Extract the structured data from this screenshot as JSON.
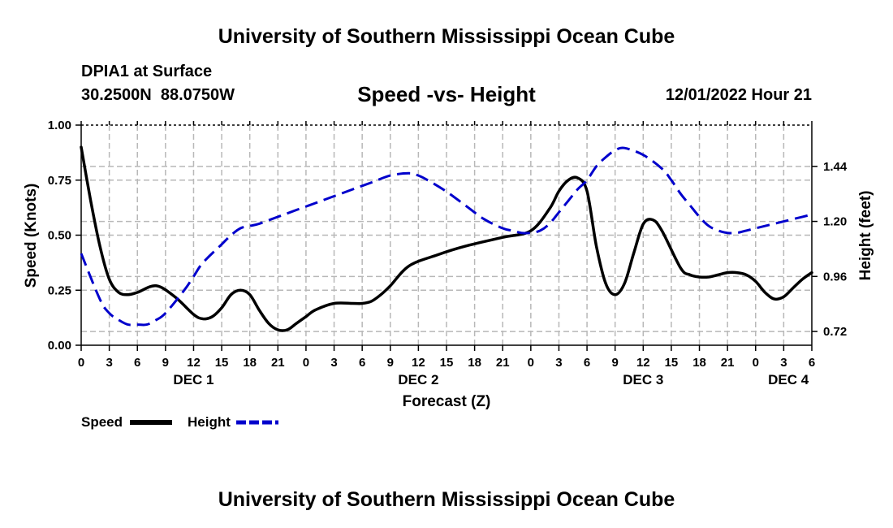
{
  "header": {
    "title": "University of Southern Mississippi Ocean Cube",
    "station": "DPIA1 at Surface",
    "coords": "30.2500N  88.0750W",
    "plot_title": "Speed -vs- Height",
    "datetime": "12/01/2022 Hour 21"
  },
  "footer": {
    "title": "University of Southern Mississippi Ocean Cube"
  },
  "chart_data": {
    "type": "line",
    "title": "Speed -vs- Height",
    "xlabel": "Forecast (Z)",
    "ylabel": "Speed (Knots)",
    "y2label": "Height (feet)",
    "x_unit": "forecast hour (0 = DEC 1 00Z)",
    "xlim": [
      0,
      78
    ],
    "ylim": [
      0,
      1.0
    ],
    "y2lim": [
      0.66,
      1.62
    ],
    "x_ticks": [
      0,
      3,
      6,
      9,
      12,
      15,
      18,
      21,
      24,
      27,
      30,
      33,
      36,
      39,
      42,
      45,
      48,
      51,
      54,
      57,
      60,
      63,
      66,
      69,
      72,
      75,
      78
    ],
    "x_tick_labels": [
      "0",
      "3",
      "6",
      "9",
      "12",
      "15",
      "18",
      "21",
      "0",
      "3",
      "6",
      "9",
      "12",
      "15",
      "18",
      "21",
      "0",
      "3",
      "6",
      "9",
      "12",
      "15",
      "18",
      "21",
      "0",
      "3",
      "6"
    ],
    "date_labels": [
      {
        "label": "DEC 1",
        "x": 12
      },
      {
        "label": "DEC 2",
        "x": 36
      },
      {
        "label": "DEC 3",
        "x": 60
      },
      {
        "label": "DEC 4",
        "x": 75.5
      }
    ],
    "y_ticks": [
      0.0,
      0.25,
      0.5,
      0.75,
      1.0
    ],
    "y_tick_labels": [
      "0.00",
      "0.25",
      "0.50",
      "0.75",
      "1.00"
    ],
    "y2_ticks": [
      0.72,
      0.96,
      1.2,
      1.44
    ],
    "y2_tick_labels": [
      "0.72",
      "0.96",
      "1.20",
      "1.44"
    ],
    "grid": true,
    "legend": [
      {
        "name": "Speed",
        "color": "#000000",
        "style": "solid"
      },
      {
        "name": "Height",
        "color": "#0000cc",
        "style": "dashed"
      }
    ],
    "series": [
      {
        "name": "Speed",
        "axis": "left",
        "color": "#000000",
        "x": [
          0,
          1,
          2,
          3,
          4,
          5,
          6,
          8,
          10,
          12,
          13,
          14,
          15,
          16,
          17,
          18,
          19,
          20,
          21,
          22,
          23,
          24,
          25,
          27,
          29,
          30,
          31,
          32,
          33,
          35,
          38,
          41,
          45,
          48,
          50,
          51,
          52,
          53,
          54,
          55,
          56,
          57,
          58,
          59,
          60,
          61,
          62,
          64,
          65,
          66,
          67,
          68,
          69,
          70,
          71,
          72,
          73,
          74,
          75,
          76,
          77,
          78
        ],
        "values": [
          0.9,
          0.66,
          0.45,
          0.3,
          0.24,
          0.23,
          0.24,
          0.27,
          0.22,
          0.14,
          0.12,
          0.13,
          0.17,
          0.23,
          0.25,
          0.23,
          0.16,
          0.1,
          0.07,
          0.07,
          0.1,
          0.13,
          0.16,
          0.19,
          0.19,
          0.19,
          0.2,
          0.23,
          0.27,
          0.36,
          0.41,
          0.45,
          0.49,
          0.52,
          0.62,
          0.7,
          0.75,
          0.76,
          0.7,
          0.45,
          0.28,
          0.23,
          0.28,
          0.42,
          0.55,
          0.57,
          0.52,
          0.35,
          0.32,
          0.31,
          0.31,
          0.32,
          0.33,
          0.33,
          0.32,
          0.29,
          0.24,
          0.21,
          0.22,
          0.26,
          0.3,
          0.33
        ]
      },
      {
        "name": "Height",
        "axis": "right",
        "color": "#0000cc",
        "x": [
          0,
          2,
          3,
          4,
          5,
          6,
          7,
          8,
          9,
          11,
          12,
          13,
          15,
          16,
          17,
          18,
          19,
          21,
          23,
          25,
          27,
          29,
          31,
          33,
          35,
          36,
          37,
          39,
          41,
          43,
          45,
          46,
          47,
          48,
          49,
          50,
          51,
          52,
          53,
          54,
          55,
          56,
          57,
          58,
          60,
          62,
          63,
          64,
          65,
          66,
          67,
          68,
          69,
          70,
          71,
          72,
          73,
          75,
          77,
          78
        ],
        "values": [
          1.06,
          0.86,
          0.8,
          0.77,
          0.75,
          0.75,
          0.75,
          0.77,
          0.8,
          0.9,
          0.96,
          1.02,
          1.1,
          1.14,
          1.17,
          1.18,
          1.19,
          1.22,
          1.25,
          1.28,
          1.31,
          1.34,
          1.37,
          1.4,
          1.41,
          1.4,
          1.38,
          1.33,
          1.27,
          1.21,
          1.17,
          1.16,
          1.15,
          1.15,
          1.16,
          1.19,
          1.24,
          1.29,
          1.34,
          1.38,
          1.44,
          1.48,
          1.51,
          1.52,
          1.49,
          1.43,
          1.38,
          1.32,
          1.27,
          1.22,
          1.18,
          1.16,
          1.15,
          1.15,
          1.16,
          1.17,
          1.18,
          1.2,
          1.22,
          1.23
        ]
      }
    ]
  }
}
